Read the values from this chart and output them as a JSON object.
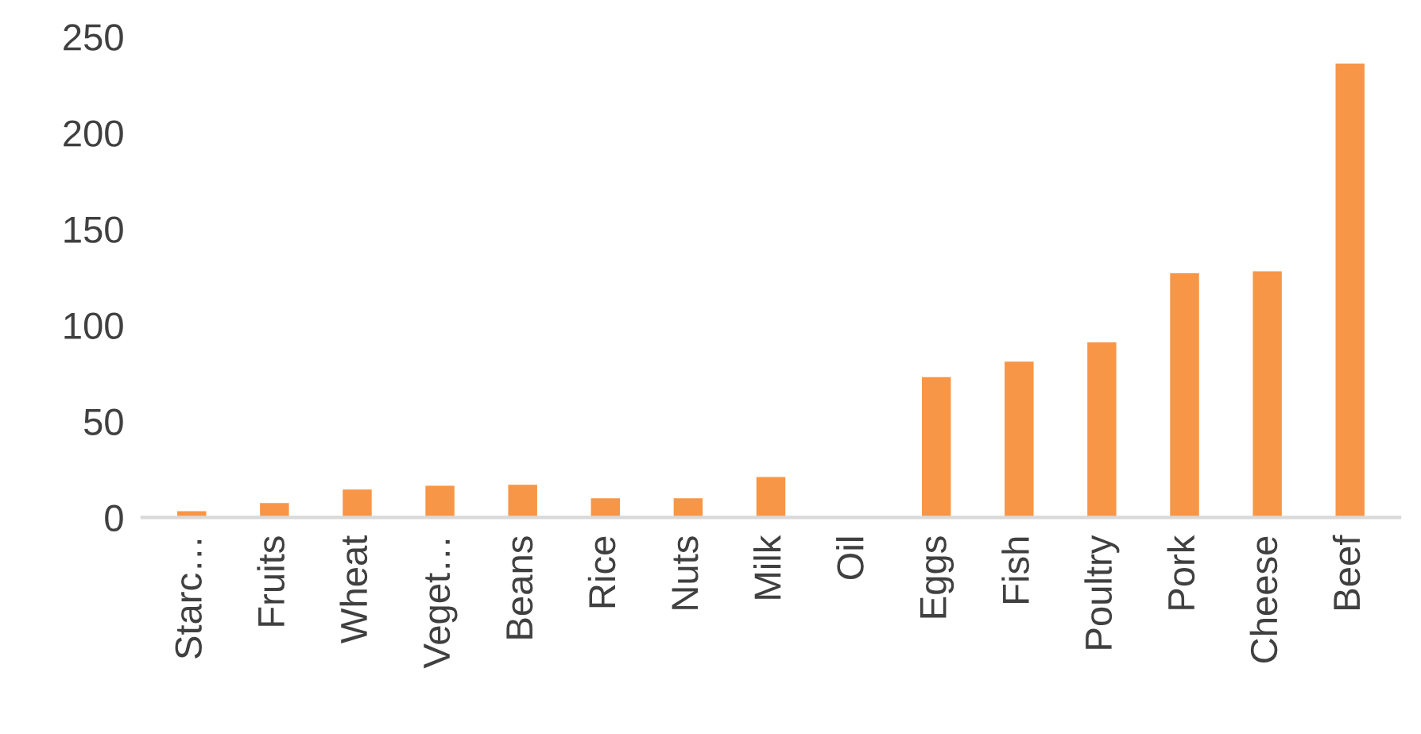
{
  "chart_data": {
    "type": "bar",
    "categories": [
      "Starc…",
      "Fruits",
      "Wheat",
      "Veget…",
      "Beans",
      "Rice",
      "Nuts",
      "Milk",
      "Oil",
      "Eggs",
      "Fish",
      "Poultry",
      "Pork",
      "Cheese",
      "Beef"
    ],
    "values": [
      3.3,
      7.5,
      14.5,
      16.5,
      17,
      10,
      10,
      21,
      0,
      73,
      81,
      91,
      127,
      128,
      236
    ],
    "color": "#f79646",
    "ylim": [
      0,
      250
    ],
    "yticks": [
      0,
      50,
      100,
      150,
      200,
      250
    ],
    "grid": false
  }
}
